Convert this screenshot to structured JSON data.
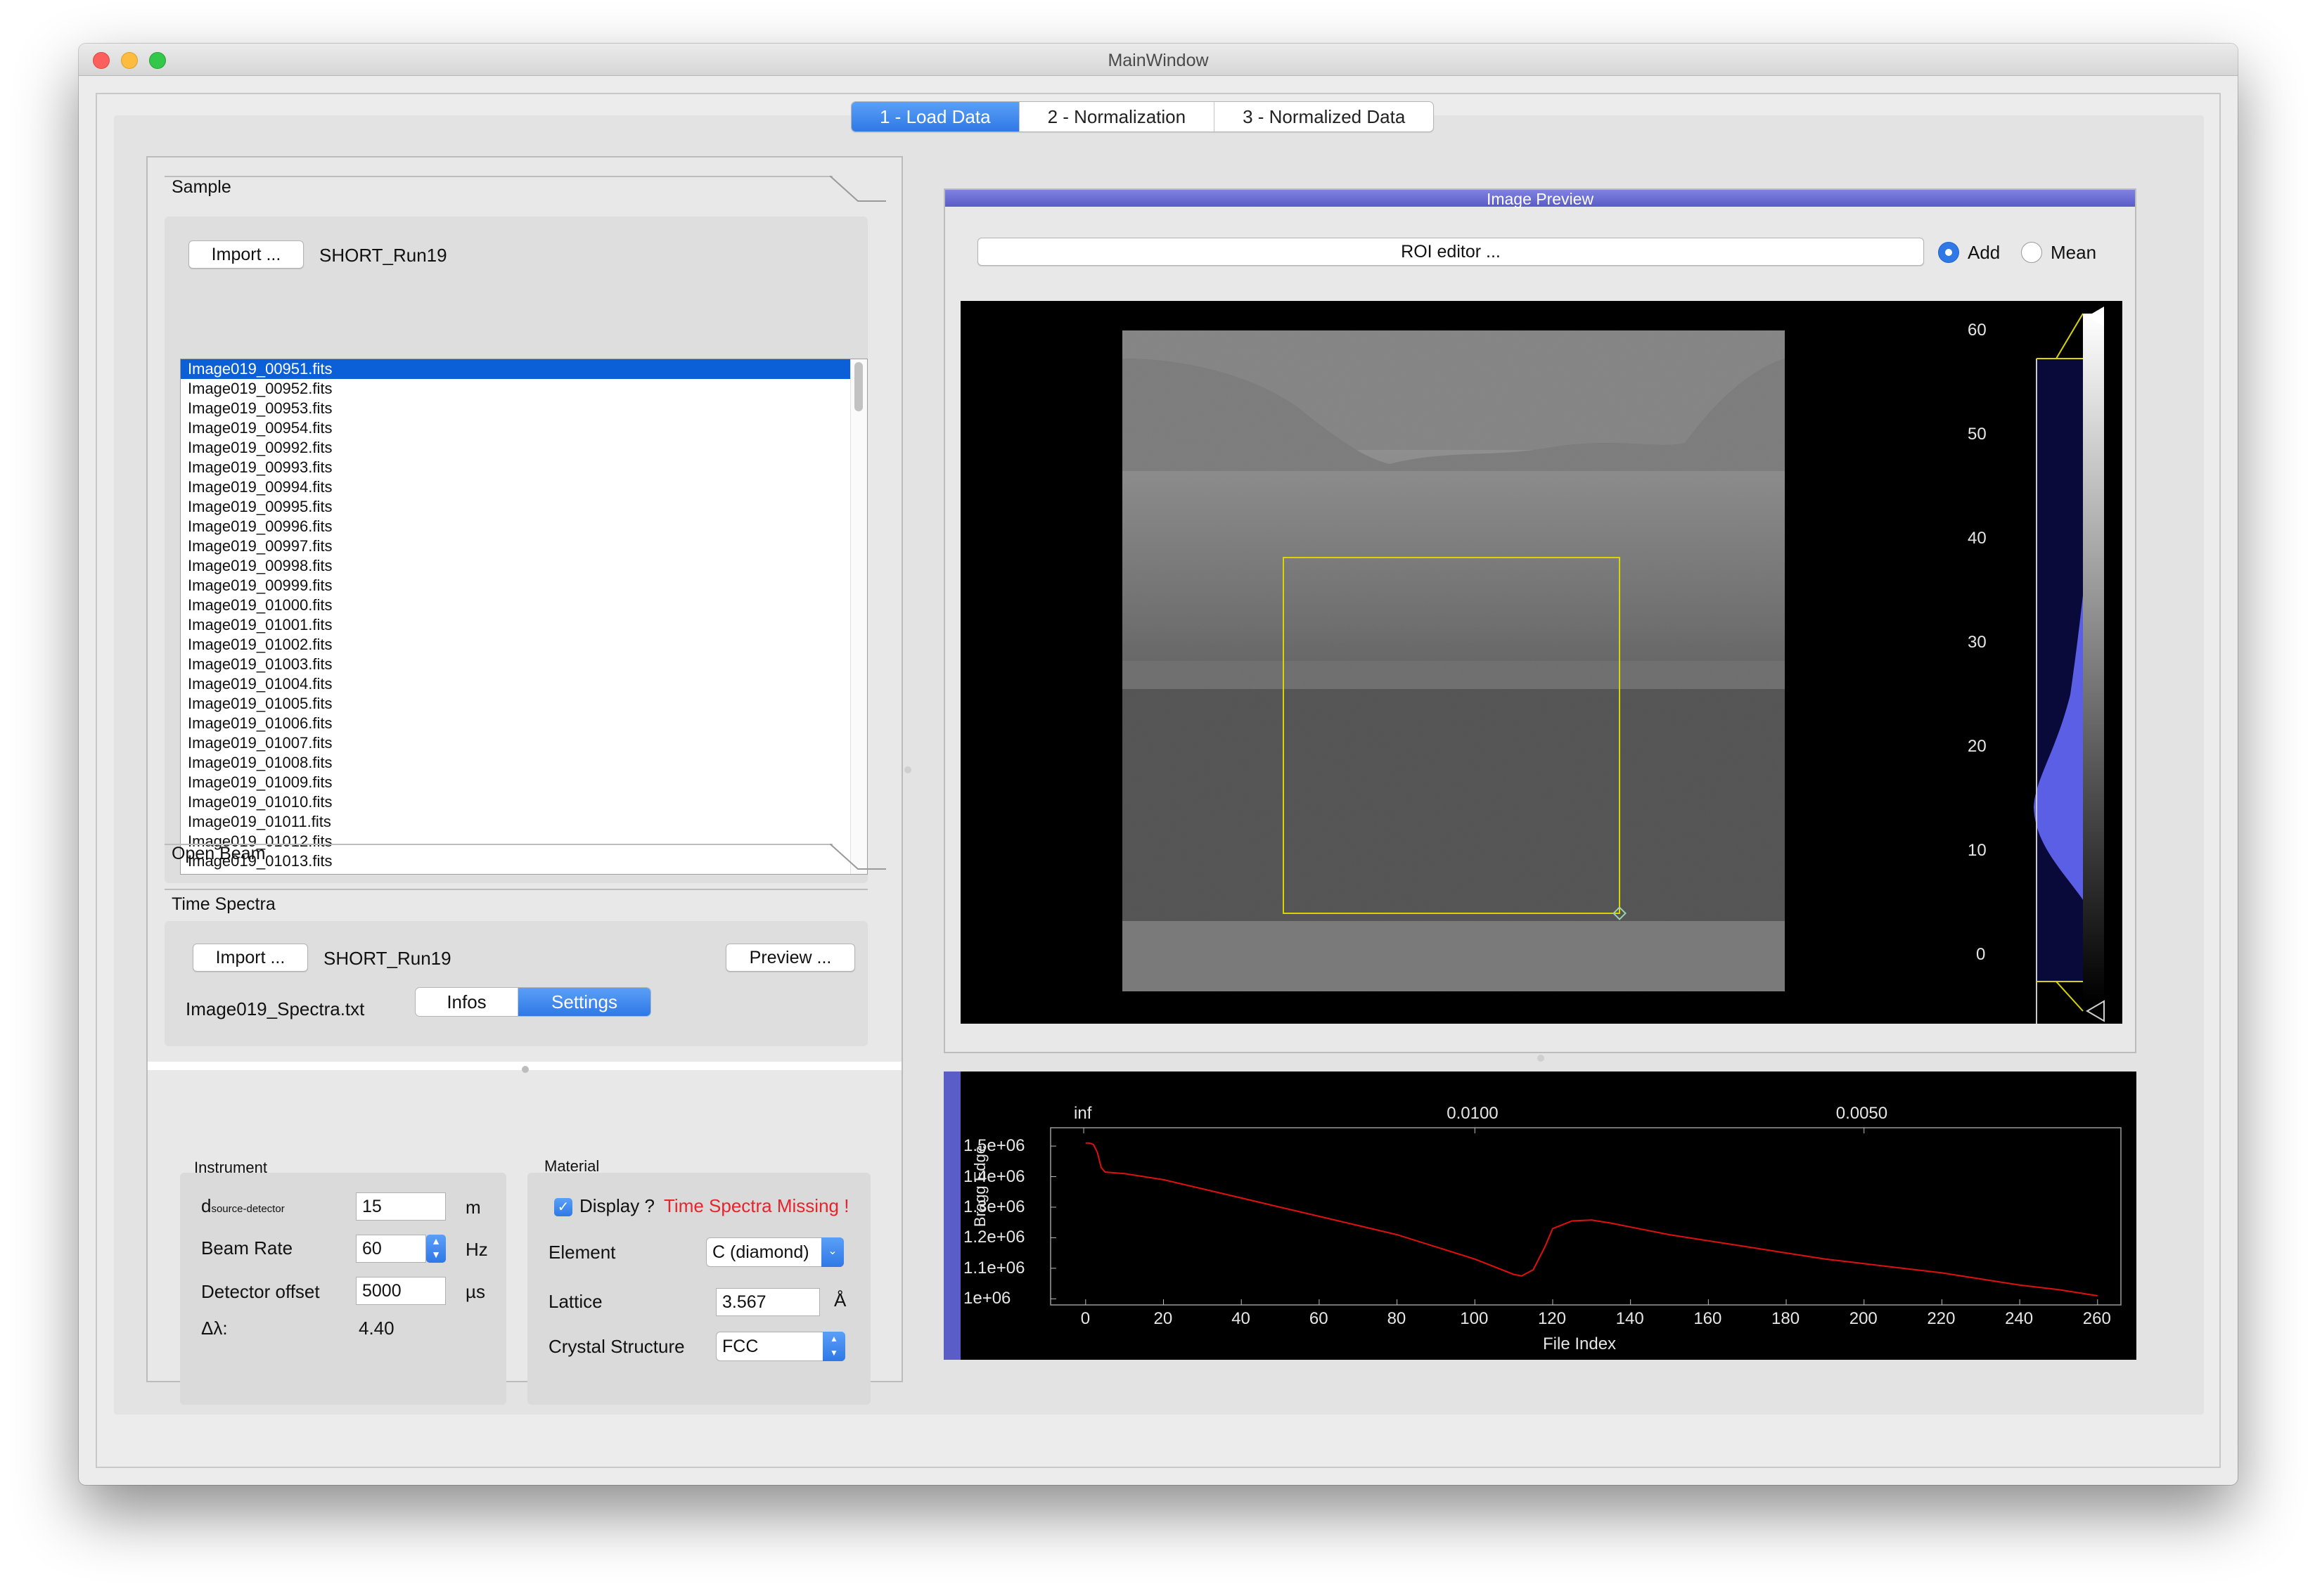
{
  "window": {
    "title": "MainWindow"
  },
  "main_tabs": [
    {
      "label": "1 - Load Data",
      "active": true
    },
    {
      "label": "2 - Normalization",
      "active": false
    },
    {
      "label": "3 - Normalized Data",
      "active": false
    }
  ],
  "sample": {
    "header": "Sample",
    "import_label": "Import ...",
    "run_name": "SHORT_Run19",
    "files": [
      "Image019_00951.fits",
      "Image019_00952.fits",
      "Image019_00953.fits",
      "Image019_00954.fits",
      "Image019_00992.fits",
      "Image019_00993.fits",
      "Image019_00994.fits",
      "Image019_00995.fits",
      "Image019_00996.fits",
      "Image019_00997.fits",
      "Image019_00998.fits",
      "Image019_00999.fits",
      "Image019_01000.fits",
      "Image019_01001.fits",
      "Image019_01002.fits",
      "Image019_01003.fits",
      "Image019_01004.fits",
      "Image019_01005.fits",
      "Image019_01006.fits",
      "Image019_01007.fits",
      "Image019_01008.fits",
      "Image019_01009.fits",
      "Image019_01010.fits",
      "Image019_01011.fits",
      "Image019_01012.fits",
      "Image019_01013.fits"
    ],
    "selected_index": 0
  },
  "open_beam": {
    "header": "Open Beam"
  },
  "time_spectra": {
    "header": "Time Spectra",
    "import_label": "Import ...",
    "run_name": "SHORT_Run19",
    "preview_label": "Preview ...",
    "file": "Image019_Spectra.txt"
  },
  "sub_tabs": [
    {
      "label": "Infos",
      "active": false
    },
    {
      "label": "Settings",
      "active": true
    }
  ],
  "instrument": {
    "title": "Instrument",
    "d_label": "d",
    "d_subscript": "source-detector",
    "d_value": "15",
    "d_unit": "m",
    "beam_rate_label": "Beam Rate",
    "beam_rate_value": "60",
    "beam_rate_unit": "Hz",
    "detector_offset_label": "Detector offset",
    "detector_offset_value": "5000",
    "detector_offset_unit": "µs",
    "delta_lambda_label": "Δλ:",
    "delta_lambda_value": "4.40"
  },
  "material": {
    "title": "Material",
    "display_label": "Display ?",
    "display_checked": true,
    "warning": "Time Spectra Missing !",
    "warning_color": "#e8232b",
    "element_label": "Element",
    "element_value": "C (diamond)",
    "lattice_label": "Lattice",
    "lattice_value": "3.567",
    "lattice_unit": "Å",
    "crystal_label": "Crystal Structure",
    "crystal_value": "FCC"
  },
  "image_preview": {
    "header": "Image Preview",
    "roi_button": "ROI editor ...",
    "mode_add": "Add",
    "mode_mean": "Mean",
    "selected_mode": "Add",
    "histogram_ticks": [
      "60",
      "50",
      "40",
      "30",
      "20",
      "10",
      "0"
    ]
  },
  "chart_data": {
    "type": "line",
    "ylabel": "Bragg Edge",
    "xlabel": "File Index",
    "top_axis_ticks": [
      "inf",
      "0.0100",
      "0.0050"
    ],
    "x_ticks": [
      "0",
      "20",
      "40",
      "60",
      "80",
      "100",
      "120",
      "140",
      "160",
      "180",
      "200",
      "220",
      "240",
      "260"
    ],
    "y_ticks": [
      "1.5e+06",
      "1.4e+06",
      "1.3e+06",
      "1.2e+06",
      "1.1e+06",
      "1e+06"
    ],
    "xlim": [
      -9,
      266
    ],
    "ylim": [
      980000.0,
      1560000.0
    ],
    "line_color": "#e01010",
    "series": [
      {
        "x": [
          0,
          1,
          2,
          3,
          4,
          5,
          10,
          20,
          30,
          40,
          50,
          60,
          70,
          80,
          90,
          100,
          105,
          110,
          112,
          115,
          118,
          120,
          125,
          130,
          135,
          140,
          150,
          160,
          170,
          180,
          190,
          200,
          210,
          220,
          230,
          240,
          250,
          260
        ],
        "y": [
          1510000.0,
          1510000.0,
          1505000.0,
          1480000.0,
          1430000.0,
          1415000.0,
          1410000.0,
          1390000.0,
          1360000.0,
          1330000.0,
          1300000.0,
          1270000.0,
          1240000.0,
          1210000.0,
          1170000.0,
          1130000.0,
          1105000.0,
          1080000.0,
          1075000.0,
          1095000.0,
          1170000.0,
          1230000.0,
          1255000.0,
          1258000.0,
          1248000.0,
          1235000.0,
          1210000.0,
          1190000.0,
          1170000.0,
          1150000.0,
          1130000.0,
          1115000.0,
          1100000.0,
          1085000.0,
          1065000.0,
          1045000.0,
          1030000.0,
          1010000.0
        ]
      }
    ]
  }
}
